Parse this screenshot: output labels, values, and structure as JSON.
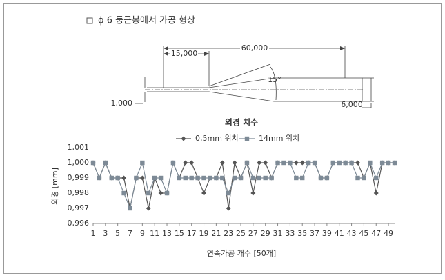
{
  "header": {
    "title": "ϕ 6 둥근봉에서 가공 형상"
  },
  "drawing": {
    "dimensions": [
      "15,000",
      "60,000",
      "15°",
      "1,000",
      "6,000"
    ]
  },
  "chart_data": {
    "type": "line",
    "title": "외경 치수",
    "y_label": "외경 [mm]",
    "x_label": "연속가공 개수 [50개]",
    "x": [
      1,
      2,
      3,
      4,
      5,
      6,
      7,
      8,
      9,
      10,
      11,
      12,
      13,
      14,
      15,
      16,
      17,
      18,
      19,
      20,
      21,
      22,
      23,
      24,
      25,
      26,
      27,
      28,
      29,
      30,
      31,
      32,
      33,
      34,
      35,
      36,
      37,
      38,
      39,
      40,
      41,
      42,
      43,
      44,
      45,
      46,
      47,
      48,
      49,
      50
    ],
    "xlim": [
      1,
      50
    ],
    "xticks": [
      1,
      3,
      5,
      7,
      9,
      11,
      13,
      15,
      17,
      19,
      21,
      23,
      25,
      27,
      29,
      31,
      33,
      35,
      37,
      39,
      41,
      43,
      45,
      47,
      49
    ],
    "ylim": [
      0.996,
      1.001
    ],
    "yticks": [
      {
        "value": 0.996,
        "label": "0,996"
      },
      {
        "value": 0.997,
        "label": "0,997"
      },
      {
        "value": 0.998,
        "label": "0,998"
      },
      {
        "value": 0.999,
        "label": "0,999"
      },
      {
        "value": 1.0,
        "label": "1,000"
      },
      {
        "value": 1.001,
        "label": "1,001"
      }
    ],
    "grid": false,
    "legend": "top",
    "series": [
      {
        "name": "0,5mm 위치",
        "color": "#555555",
        "marker": "diamond",
        "values": [
          1.0,
          0.999,
          1.0,
          0.999,
          0.999,
          0.999,
          0.997,
          0.999,
          0.999,
          0.997,
          0.999,
          0.998,
          0.998,
          1.0,
          0.999,
          1.0,
          1.0,
          0.999,
          0.998,
          0.999,
          0.999,
          1.0,
          0.997,
          1.0,
          0.999,
          1.0,
          0.998,
          1.0,
          1.0,
          0.999,
          1.0,
          1.0,
          1.0,
          1.0,
          1.0,
          1.0,
          1.0,
          0.999,
          0.999,
          1.0,
          1.0,
          1.0,
          1.0,
          1.0,
          0.999,
          1.0,
          0.998,
          1.0,
          1.0,
          1.0
        ]
      },
      {
        "name": "14mm 위치",
        "color": "#7d8a96",
        "marker": "square",
        "values": [
          1.0,
          0.999,
          1.0,
          0.999,
          0.999,
          0.998,
          0.997,
          0.999,
          1.0,
          0.998,
          0.999,
          0.999,
          0.998,
          1.0,
          0.999,
          0.999,
          0.999,
          0.999,
          0.999,
          0.999,
          0.999,
          0.999,
          0.998,
          0.999,
          0.999,
          1.0,
          0.999,
          0.999,
          0.999,
          0.999,
          1.0,
          1.0,
          1.0,
          0.999,
          0.999,
          1.0,
          1.0,
          0.999,
          0.999,
          1.0,
          1.0,
          1.0,
          1.0,
          0.999,
          0.999,
          1.0,
          0.999,
          1.0,
          1.0,
          1.0
        ]
      }
    ]
  }
}
